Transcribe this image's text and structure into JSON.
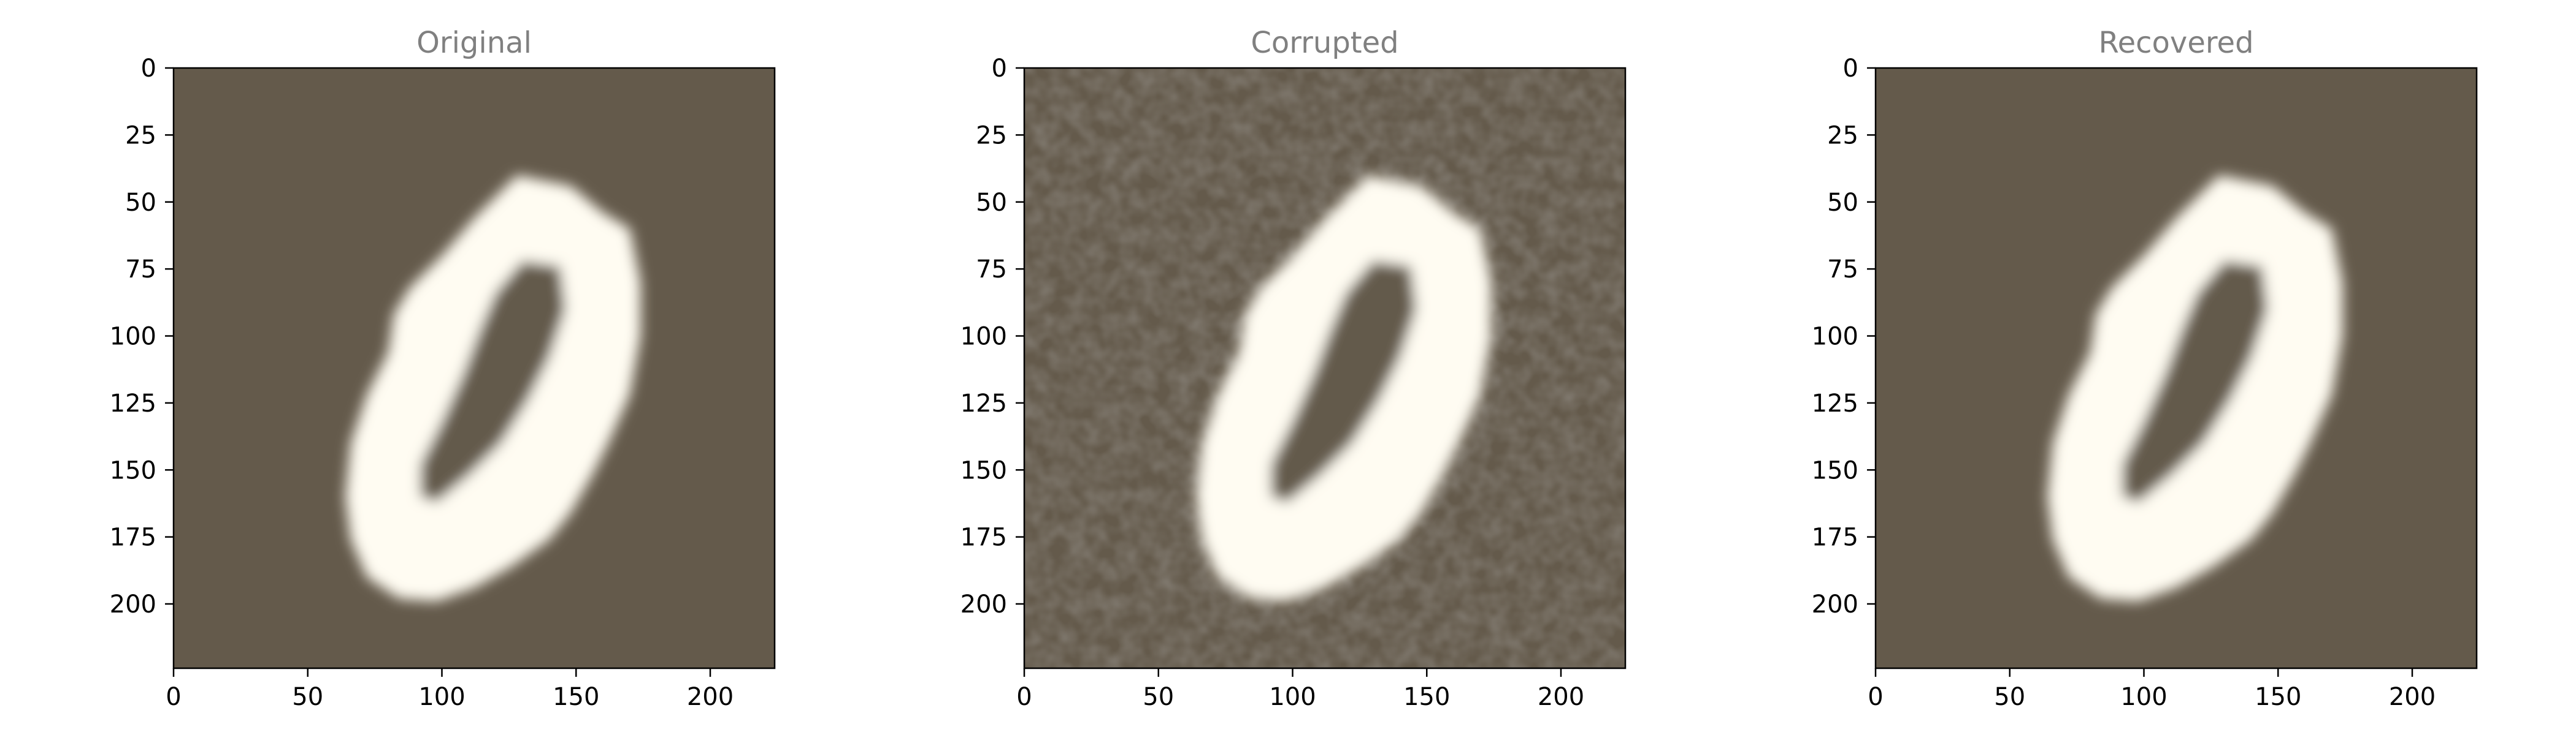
{
  "chart_data": [
    {
      "type": "heatmap",
      "title": "Original",
      "xlim": [
        0,
        224
      ],
      "ylim": [
        224,
        0
      ],
      "xticks": [
        0,
        50,
        100,
        150,
        200
      ],
      "yticks": [
        0,
        25,
        50,
        75,
        100,
        125,
        150,
        175,
        200
      ],
      "noise": false
    },
    {
      "type": "heatmap",
      "title": "Corrupted",
      "xlim": [
        0,
        224
      ],
      "ylim": [
        224,
        0
      ],
      "xticks": [
        0,
        50,
        100,
        150,
        200
      ],
      "yticks": [
        0,
        25,
        50,
        75,
        100,
        125,
        150,
        175,
        200
      ],
      "noise": true
    },
    {
      "type": "heatmap",
      "title": "Recovered",
      "xlim": [
        0,
        224
      ],
      "ylim": [
        224,
        0
      ],
      "xticks": [
        0,
        50,
        100,
        150,
        200
      ],
      "yticks": [
        0,
        25,
        50,
        75,
        100,
        125,
        150,
        175,
        200
      ],
      "noise": false
    }
  ],
  "colors": {
    "background": "#645a4b",
    "foreground": "#fffcf2",
    "title": "#808080",
    "axis": "#000000"
  }
}
